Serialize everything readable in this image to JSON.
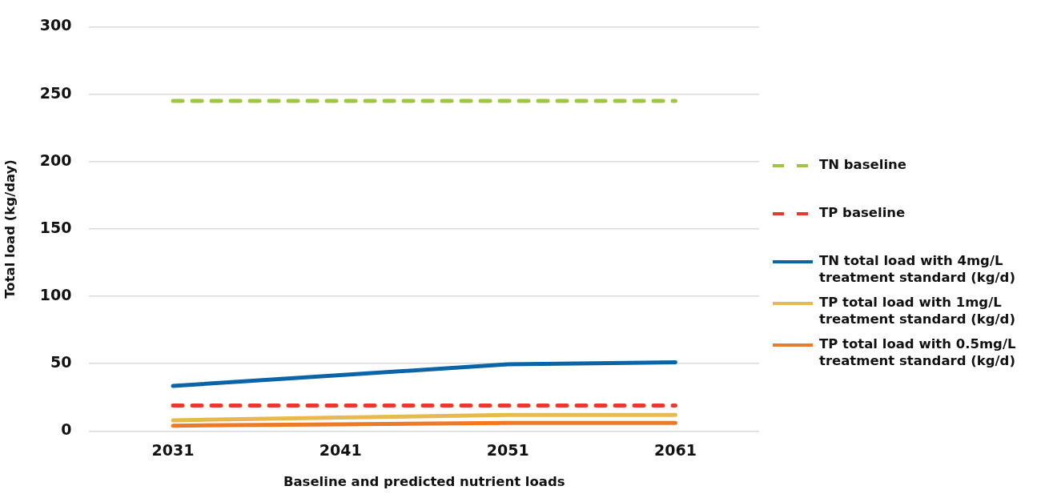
{
  "chart_data": {
    "type": "line",
    "xlabel": "Baseline and predicted nutrient loads",
    "ylabel": "Total load (kg/day)",
    "categories": [
      "2031",
      "2041",
      "2051",
      "2061"
    ],
    "ylim": [
      0,
      300
    ],
    "yticks": [
      0,
      50,
      100,
      150,
      200,
      250,
      300
    ],
    "grid": "y",
    "legend": "right",
    "marker": "none",
    "series": [
      {
        "name": "TN baseline",
        "color": "#9dc83b",
        "line_style": "dashed",
        "values": [
          245,
          245,
          245,
          245
        ]
      },
      {
        "name": "TP baseline",
        "color": "#e8392e",
        "line_style": "dashed",
        "values": [
          19,
          19,
          19,
          19
        ]
      },
      {
        "name": "TN total load with 4mg/L treatment standard (kg/d)",
        "color": "#0a64a8",
        "line_style": "solid",
        "values": [
          33.5,
          41.5,
          49.5,
          51
        ]
      },
      {
        "name": "TP total load with 1mg/L treatment standard (kg/d)",
        "color": "#e8b94f",
        "line_style": "solid",
        "values": [
          8,
          10,
          12,
          12
        ]
      },
      {
        "name": "TP total load with 0.5mg/L treatment standard (kg/d)",
        "color": "#ec7a27",
        "line_style": "solid",
        "values": [
          4,
          5,
          6,
          6
        ]
      }
    ]
  }
}
